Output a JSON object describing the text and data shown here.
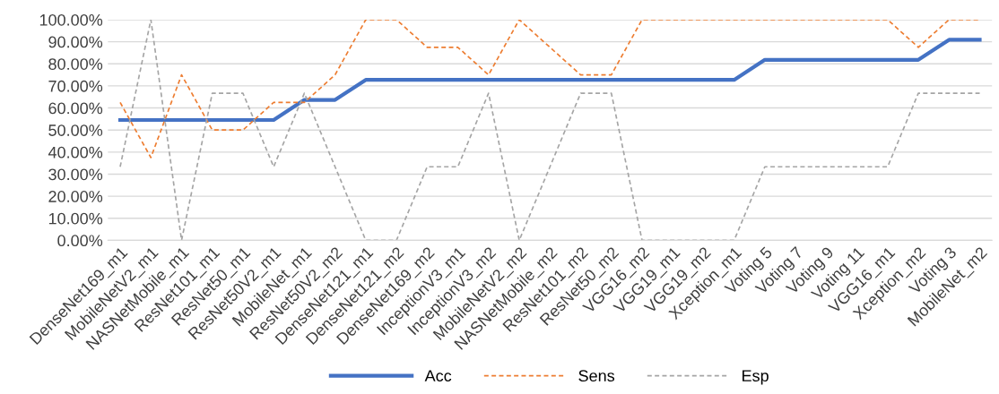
{
  "chart_data": {
    "type": "line",
    "categories": [
      "DenseNet169_m1",
      "MobileNetV2_m1",
      "NASNetMobile_m1",
      "ResNet101_m1",
      "ResNet50_m1",
      "ResNet50V2_m1",
      "MobileNet_m1",
      "ResNet50V2_m2",
      "DenseNet121_m1",
      "DenseNet121_m2",
      "DenseNet169_m2",
      "InceptionV3_m1",
      "InceptionV3_m2",
      "MobileNetV2_m2",
      "NASNetMobile_m2",
      "ResNet101_m2",
      "ResNet50_m2",
      "VGG16_m2",
      "VGG19_m1",
      "VGG19_m2",
      "Xception_m1",
      "Voting 5",
      "Voting 7",
      "Voting 9",
      "Voting 11",
      "VGG16_m1",
      "Xception_m2",
      "Voting 3",
      "MobileNet_m2"
    ],
    "series": [
      {
        "name": "Acc",
        "color": "#4472c4",
        "line_style": "solid",
        "values": [
          54.55,
          54.55,
          54.55,
          54.55,
          54.55,
          54.55,
          63.64,
          63.64,
          72.73,
          72.73,
          72.73,
          72.73,
          72.73,
          72.73,
          72.73,
          72.73,
          72.73,
          72.73,
          72.73,
          72.73,
          72.73,
          81.82,
          81.82,
          81.82,
          81.82,
          81.82,
          81.82,
          90.91,
          90.91
        ]
      },
      {
        "name": "Sens",
        "color": "#ed7d31",
        "line_style": "dashed",
        "values": [
          62.5,
          37.5,
          75,
          50,
          50,
          62.5,
          62.5,
          75,
          100,
          100,
          87.5,
          87.5,
          75,
          100,
          87.5,
          75,
          75,
          100,
          100,
          100,
          100,
          100,
          100,
          100,
          100,
          100,
          87.5,
          100,
          100
        ]
      },
      {
        "name": "Esp",
        "color": "#a5a5a5",
        "line_style": "dashed",
        "values": [
          33.33,
          100,
          0,
          66.67,
          66.67,
          33.33,
          66.67,
          33.33,
          0,
          0,
          33.33,
          33.33,
          66.67,
          0,
          33.33,
          66.67,
          66.67,
          0,
          0,
          0,
          0,
          33.33,
          33.33,
          33.33,
          33.33,
          33.33,
          66.67,
          66.67,
          66.67
        ]
      }
    ],
    "ylim": [
      0,
      100
    ],
    "yticks": [
      {
        "value": 0,
        "label": "0.00%"
      },
      {
        "value": 10,
        "label": "10.00%"
      },
      {
        "value": 20,
        "label": "20.00%"
      },
      {
        "value": 30,
        "label": "30.00%"
      },
      {
        "value": 40,
        "label": "40.00%"
      },
      {
        "value": 50,
        "label": "50.00%"
      },
      {
        "value": 60,
        "label": "60.00%"
      },
      {
        "value": 70,
        "label": "70.00%"
      },
      {
        "value": 80,
        "label": "80.00%"
      },
      {
        "value": 90,
        "label": "90.00%"
      },
      {
        "value": 100,
        "label": "100.00%"
      }
    ],
    "grid": "y",
    "legend": "bottom",
    "marker": "none"
  }
}
